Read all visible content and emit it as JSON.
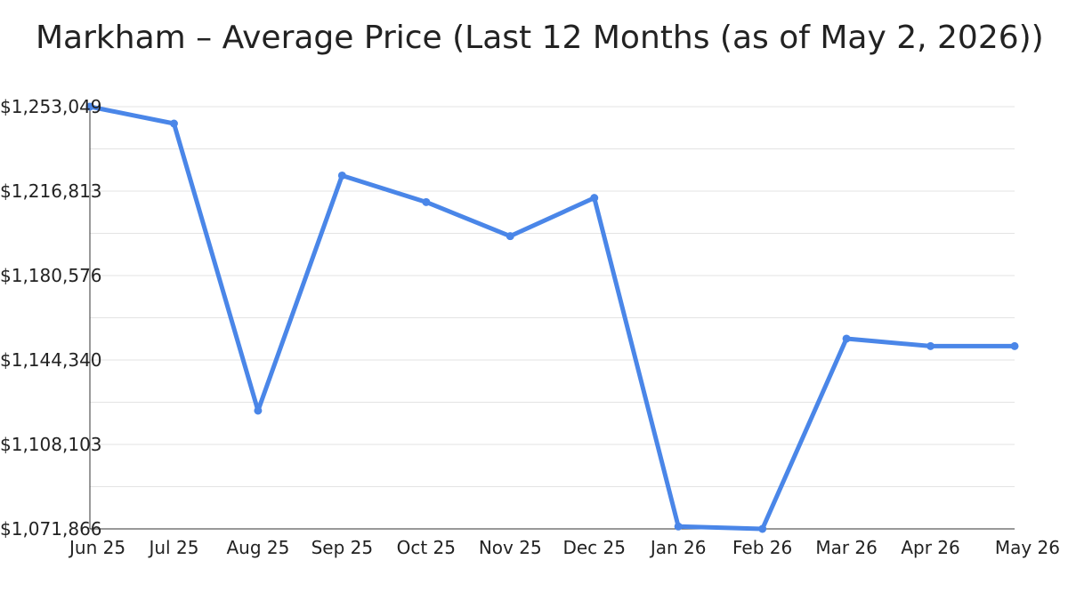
{
  "chart_data": {
    "type": "line",
    "title": "Markham – Average Price (Last 12 Months (as of May 2, 2026))",
    "xlabel": "",
    "ylabel": "",
    "categories": [
      "Jun 25",
      "Jul 25",
      "Aug 25",
      "Sep 25",
      "Oct 25",
      "Nov 25",
      "Dec 25",
      "Jan 26",
      "Feb 26",
      "Mar 26",
      "Apr 26",
      "May 26"
    ],
    "series": [
      {
        "values": [
          1253049,
          1245800,
          1122600,
          1223500,
          1212100,
          1197500,
          1213900,
          1072900,
          1071866,
          1153500,
          1150300,
          1150300
        ]
      }
    ],
    "yticks": [
      1071866,
      1108103,
      1144340,
      1180576,
      1216813,
      1253049
    ],
    "ytick_labels": [
      "$1,071,866",
      "$1,108,103",
      "$1,144,340",
      "$1,180,576",
      "$1,216,813",
      "$1,253,049"
    ],
    "ylim": [
      1071866,
      1253049
    ],
    "grid": true,
    "legend": "none",
    "colors": {
      "line": "#4a86e8"
    }
  }
}
